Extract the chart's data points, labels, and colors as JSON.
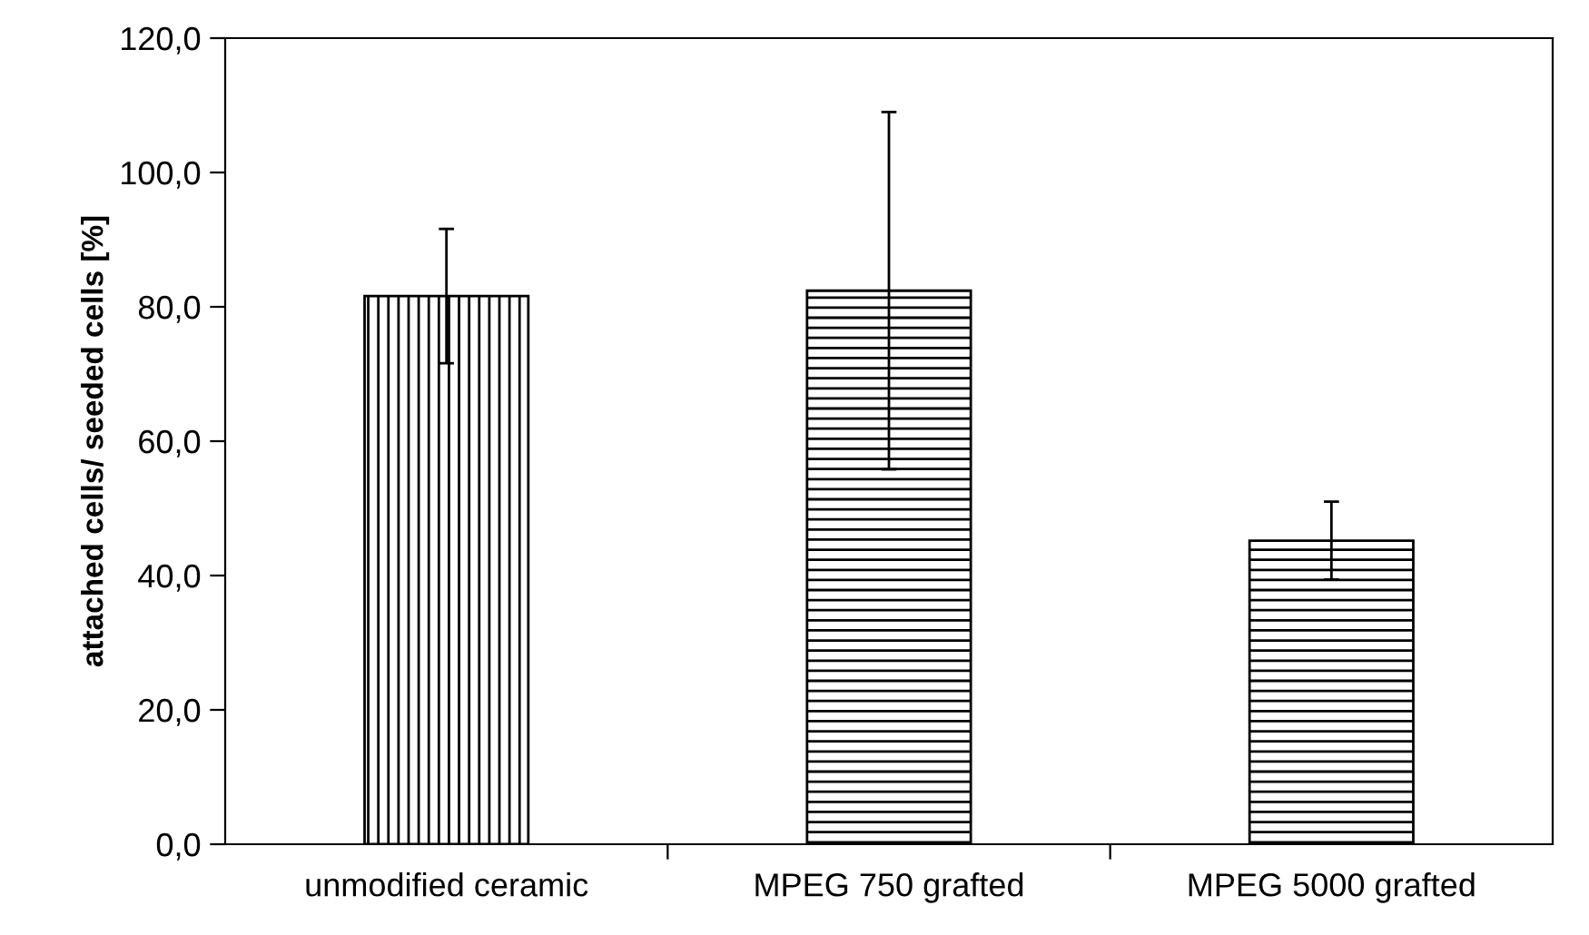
{
  "chart_data": {
    "type": "bar",
    "ylabel": "attached cells/ seeded cells [%]",
    "categories": [
      "unmodified ceramic",
      "MPEG 750 grafted",
      "MPEG 5000 grafted"
    ],
    "values": [
      81.6,
      82.4,
      45.2
    ],
    "errors": [
      10.0,
      26.6,
      5.8
    ],
    "colors": [
      "#000000",
      "#000000",
      "#000000"
    ],
    "ylim": [
      0,
      120
    ],
    "yticks": [
      {
        "value": 0,
        "label": "0,0"
      },
      {
        "value": 20,
        "label": "20,0"
      },
      {
        "value": 40,
        "label": "40,0"
      },
      {
        "value": 60,
        "label": "60,0"
      },
      {
        "value": 80,
        "label": "80,0"
      },
      {
        "value": 100,
        "label": "100,0"
      },
      {
        "value": 120,
        "label": "120,0"
      }
    ],
    "grid": false,
    "legend": false
  }
}
